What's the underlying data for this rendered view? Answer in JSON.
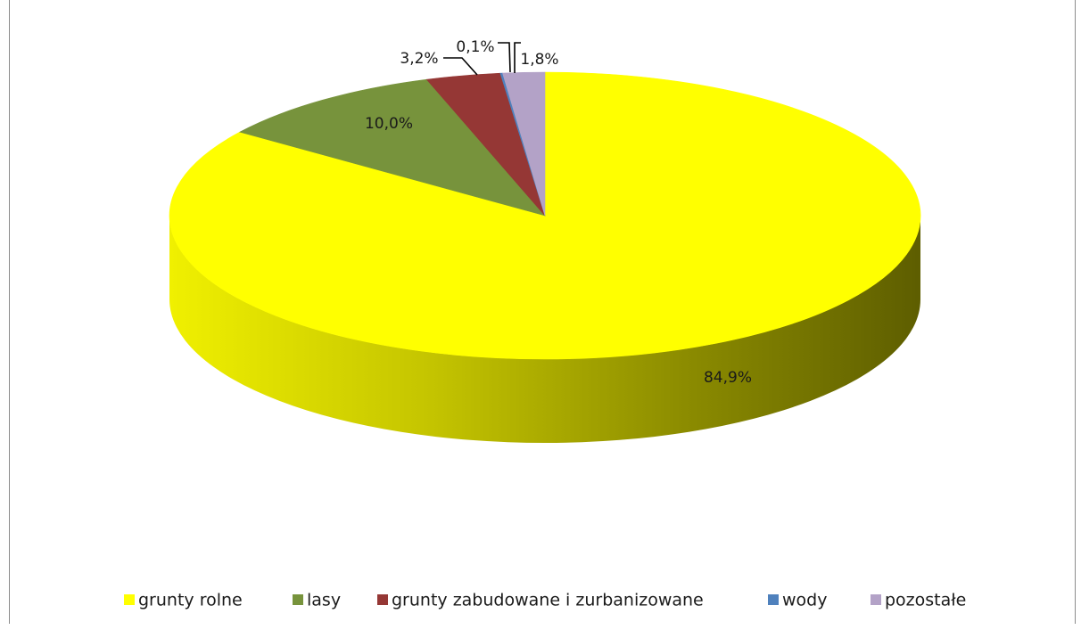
{
  "chart_data": {
    "type": "pie",
    "style": "3d",
    "categories": [
      "grunty rolne",
      "lasy",
      "grunty zabudowane i zurbanizowane",
      "wody",
      "pozostałe"
    ],
    "values": [
      84.9,
      10.0,
      3.2,
      0.1,
      1.8
    ],
    "labels": [
      "84,9%",
      "10,0%",
      "3,2%",
      "0,1%",
      "1,8%"
    ],
    "colors": [
      "#ffff00",
      "#77933c",
      "#953735",
      "#4f81bd",
      "#b3a2c7"
    ],
    "legend_position": "bottom",
    "title": ""
  }
}
